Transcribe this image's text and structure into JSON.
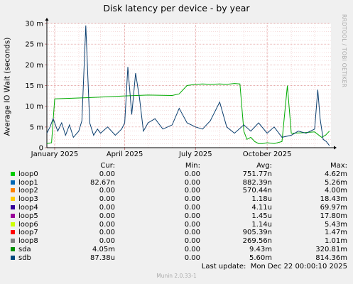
{
  "chart_data": {
    "type": "line",
    "title": "Disk latency per device - by year",
    "ylabel": "Average IO Wait (seconds)",
    "ylim": [
      0,
      30
    ],
    "y_unit_suffix": "m",
    "yticks": [
      0,
      5,
      10,
      15,
      20,
      25,
      30
    ],
    "ytick_labels": [
      "0",
      "5 m",
      "10 m",
      "15 m",
      "20 m",
      "25 m",
      "30 m"
    ],
    "x_range": [
      "2024-12-22",
      "2025-12-22"
    ],
    "xticks": [
      {
        "date": "2025-01-01",
        "label": "January 2025"
      },
      {
        "date": "2025-04-01",
        "label": "April 2025"
      },
      {
        "date": "2025-07-01",
        "label": "July 2025"
      },
      {
        "date": "2025-10-01",
        "label": "October 2025"
      }
    ],
    "grid": true,
    "series": [
      {
        "name": "sda",
        "color": "#00aa00",
        "x": [
          "2024-12-22",
          "2024-12-28",
          "2025-01-01",
          "2025-02-01",
          "2025-03-01",
          "2025-04-01",
          "2025-05-01",
          "2025-06-01",
          "2025-06-10",
          "2025-06-20",
          "2025-07-01",
          "2025-07-10",
          "2025-07-20",
          "2025-08-01",
          "2025-08-10",
          "2025-08-20",
          "2025-08-27",
          "2025-09-01",
          "2025-09-05",
          "2025-09-10",
          "2025-09-15",
          "2025-09-20",
          "2025-09-25",
          "2025-10-01",
          "2025-10-10",
          "2025-10-20",
          "2025-10-27",
          "2025-11-01",
          "2025-11-15",
          "2025-12-01",
          "2025-12-10",
          "2025-12-15",
          "2025-12-20"
        ],
        "y": [
          1.0,
          1.2,
          11.8,
          12.0,
          12.2,
          12.5,
          12.7,
          12.6,
          13.0,
          15.0,
          15.3,
          15.4,
          15.3,
          15.4,
          15.3,
          15.5,
          15.4,
          4.0,
          2.0,
          2.5,
          1.5,
          1.0,
          1.0,
          1.2,
          1.0,
          1.5,
          15.0,
          3.5,
          3.6,
          3.8,
          2.5,
          3.0,
          4.0
        ]
      },
      {
        "name": "sdb",
        "color": "#0c3f6f",
        "x": [
          "2024-12-22",
          "2024-12-26",
          "2024-12-30",
          "2025-01-05",
          "2025-01-10",
          "2025-01-15",
          "2025-01-20",
          "2025-01-25",
          "2025-02-01",
          "2025-02-05",
          "2025-02-10",
          "2025-02-15",
          "2025-02-20",
          "2025-02-25",
          "2025-03-01",
          "2025-03-10",
          "2025-03-20",
          "2025-03-28",
          "2025-04-01",
          "2025-04-05",
          "2025-04-10",
          "2025-04-15",
          "2025-04-20",
          "2025-04-25",
          "2025-05-01",
          "2025-05-10",
          "2025-05-20",
          "2025-06-01",
          "2025-06-10",
          "2025-06-20",
          "2025-07-01",
          "2025-07-10",
          "2025-07-20",
          "2025-08-01",
          "2025-08-10",
          "2025-08-20",
          "2025-09-01",
          "2025-09-10",
          "2025-09-20",
          "2025-10-01",
          "2025-10-10",
          "2025-10-20",
          "2025-11-01",
          "2025-11-10",
          "2025-11-20",
          "2025-12-01",
          "2025-12-05",
          "2025-12-08",
          "2025-12-12",
          "2025-12-16",
          "2025-12-20"
        ],
        "y": [
          3.5,
          5.0,
          7.0,
          4.0,
          6.0,
          3.0,
          5.5,
          2.5,
          4.0,
          6.5,
          29.5,
          6.0,
          3.0,
          4.5,
          3.5,
          5.0,
          3.0,
          4.5,
          6.0,
          19.5,
          8.0,
          18.0,
          12.0,
          4.0,
          6.0,
          7.0,
          4.5,
          5.5,
          9.5,
          6.0,
          5.0,
          4.5,
          6.5,
          11.0,
          5.0,
          3.5,
          5.5,
          4.0,
          6.0,
          3.5,
          5.0,
          2.5,
          3.0,
          4.0,
          3.5,
          4.5,
          14.0,
          7.0,
          2.0,
          1.5,
          0.5
        ]
      }
    ],
    "legend": {
      "headers": {
        "cur": "Cur:",
        "min": "Min:",
        "avg": "Avg:",
        "max": "Max:"
      },
      "rows": [
        {
          "name": "loop0",
          "color": "#00cc00",
          "cur": "0.00",
          "min": "0.00",
          "avg": "751.77n",
          "max": "4.62m"
        },
        {
          "name": "loop1",
          "color": "#0066b3",
          "cur": "82.67n",
          "min": "0.00",
          "avg": "882.39n",
          "max": "5.26m"
        },
        {
          "name": "loop2",
          "color": "#ff8000",
          "cur": "0.00",
          "min": "0.00",
          "avg": "570.44n",
          "max": "4.00m"
        },
        {
          "name": "loop3",
          "color": "#ffcc00",
          "cur": "0.00",
          "min": "0.00",
          "avg": "1.18u",
          "max": "18.43m"
        },
        {
          "name": "loop4",
          "color": "#330099",
          "cur": "0.00",
          "min": "0.00",
          "avg": "4.11u",
          "max": "69.97m"
        },
        {
          "name": "loop5",
          "color": "#990099",
          "cur": "0.00",
          "min": "0.00",
          "avg": "1.45u",
          "max": "17.80m"
        },
        {
          "name": "loop6",
          "color": "#ccff00",
          "cur": "0.00",
          "min": "0.00",
          "avg": "1.14u",
          "max": "5.43m"
        },
        {
          "name": "loop7",
          "color": "#ff0000",
          "cur": "0.00",
          "min": "0.00",
          "avg": "905.39n",
          "max": "1.47m"
        },
        {
          "name": "loop8",
          "color": "#808080",
          "cur": "0.00",
          "min": "0.00",
          "avg": "269.56n",
          "max": "1.01m"
        },
        {
          "name": "sda",
          "color": "#008f00",
          "cur": "4.05m",
          "min": "0.00",
          "avg": "9.43m",
          "max": "320.81m"
        },
        {
          "name": "sdb",
          "color": "#00487d",
          "cur": "87.38u",
          "min": "0.00",
          "avg": "5.60m",
          "max": "814.36m"
        }
      ]
    },
    "last_update": "Last update:  Mon Dec 22 00:00:10 2025"
  },
  "watermark": "RRDTOOL / TOBI OETIKER",
  "version": "Munin 2.0.33-1"
}
